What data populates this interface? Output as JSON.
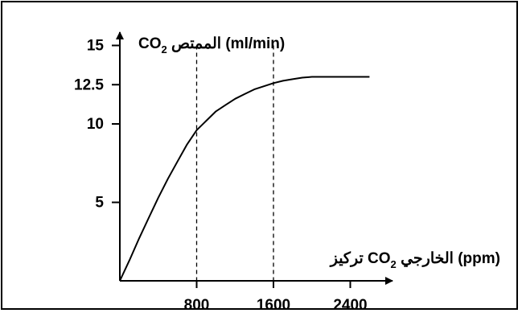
{
  "chart_data": {
    "type": "line",
    "title": "",
    "ylabel_parts": {
      "chem": "CO",
      "sub": "2",
      "arabic": "الممتص",
      "unit": "(ml/min)"
    },
    "xlabel_parts": {
      "arabic_pre": "تركيز",
      "chem": "CO",
      "sub": "2",
      "arabic_post": "الخارجي",
      "unit": "(ppm)"
    },
    "xlim": [
      0,
      3000
    ],
    "ylim": [
      0,
      15
    ],
    "x_ticks": [
      {
        "value": 800,
        "label": "800"
      },
      {
        "value": 1600,
        "label": "1600"
      },
      {
        "value": 2400,
        "label": "2400"
      }
    ],
    "y_ticks": [
      {
        "value": 5,
        "label": "5"
      },
      {
        "value": 10,
        "label": "10"
      },
      {
        "value": 12.5,
        "label": "12.5"
      },
      {
        "value": 15,
        "label": "15"
      }
    ],
    "reference_lines_x": [
      800,
      1600
    ],
    "series": [
      {
        "color": "#000000",
        "points": [
          [
            0,
            0
          ],
          [
            100,
            1.3
          ],
          [
            200,
            2.7
          ],
          [
            300,
            4.0
          ],
          [
            400,
            5.3
          ],
          [
            500,
            6.5
          ],
          [
            600,
            7.6
          ],
          [
            700,
            8.7
          ],
          [
            800,
            9.6
          ],
          [
            900,
            10.2
          ],
          [
            1000,
            10.8
          ],
          [
            1100,
            11.2
          ],
          [
            1200,
            11.6
          ],
          [
            1300,
            11.9
          ],
          [
            1400,
            12.2
          ],
          [
            1500,
            12.4
          ],
          [
            1600,
            12.6
          ],
          [
            1700,
            12.75
          ],
          [
            1800,
            12.85
          ],
          [
            1900,
            12.95
          ],
          [
            2000,
            13.0
          ],
          [
            2200,
            13.0
          ],
          [
            2400,
            13.0
          ],
          [
            2600,
            13.0
          ]
        ]
      }
    ]
  }
}
